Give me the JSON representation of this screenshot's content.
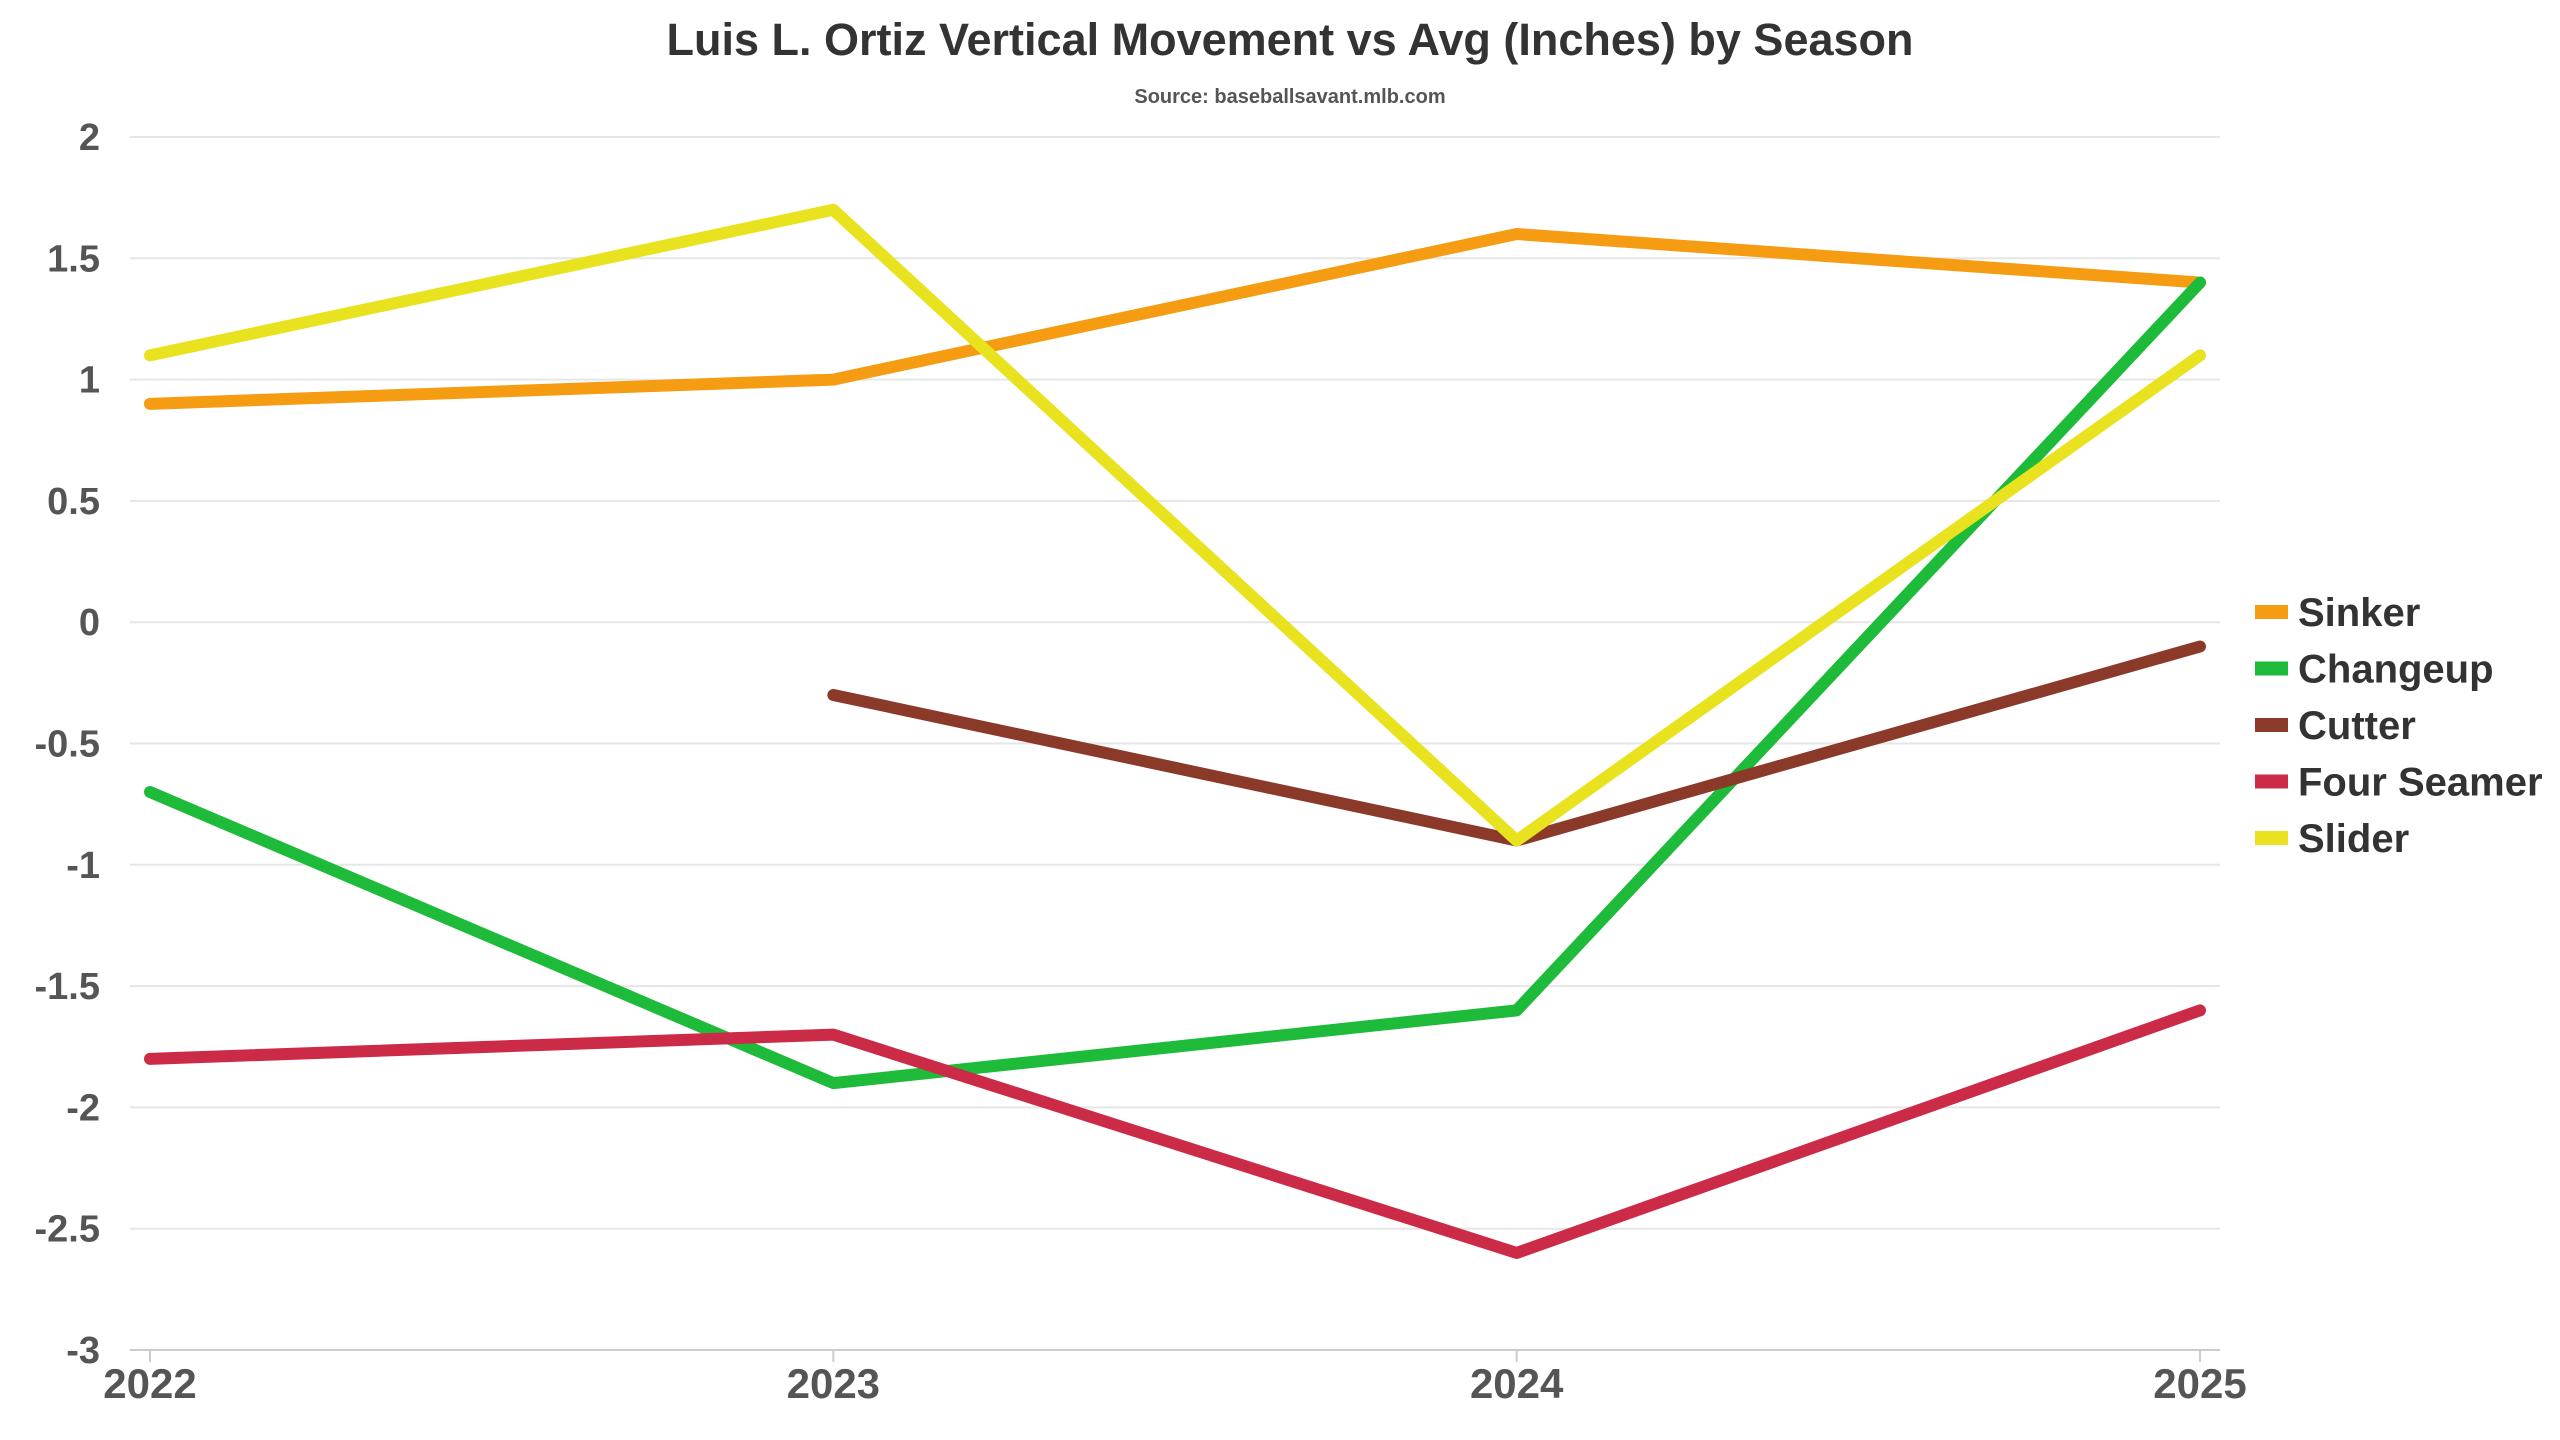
{
  "chart_data": {
    "type": "line",
    "title": "Luis L. Ortiz Vertical Movement vs Avg (Inches) by Season",
    "subtitle": "Source: baseballsavant.mlb.com",
    "x": [
      "2022",
      "2023",
      "2024",
      "2025"
    ],
    "ylim": [
      -3,
      2
    ],
    "y_ticks": [
      "2",
      "1.5",
      "1",
      "0.5",
      "0",
      "-0.5",
      "-1",
      "-1.5",
      "-2",
      "-2.5",
      "-3"
    ],
    "grid": true,
    "legend_position": "right",
    "series": [
      {
        "name": "Sinker",
        "color": "#F59C12",
        "values": [
          0.9,
          1.0,
          1.6,
          1.4
        ]
      },
      {
        "name": "Changeup",
        "color": "#1EBA3A",
        "values": [
          -0.7,
          -1.9,
          -1.6,
          1.4
        ]
      },
      {
        "name": "Cutter",
        "color": "#8B3A2A",
        "values": [
          null,
          -0.3,
          -0.9,
          -0.1
        ]
      },
      {
        "name": "Four Seamer",
        "color": "#CC2B48",
        "values": [
          -1.8,
          -1.7,
          -2.6,
          -1.6
        ]
      },
      {
        "name": "Slider",
        "color": "#E8E21F",
        "values": [
          1.1,
          1.7,
          -0.9,
          1.1
        ]
      }
    ]
  }
}
